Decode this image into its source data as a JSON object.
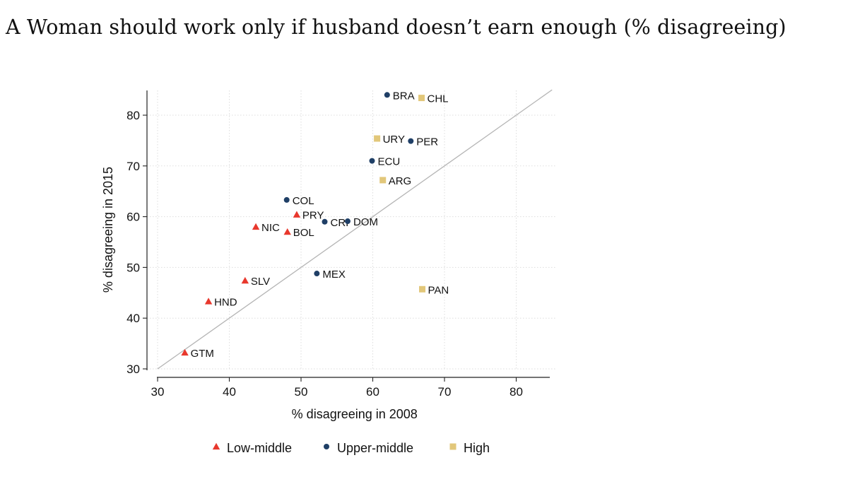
{
  "chart_data": {
    "type": "scatter",
    "title": "A Woman should work only if husband doesn’t earn enough (% disagreeing)",
    "xlabel": "% disagreeing in 2008",
    "ylabel": "% disagreeing in 2015",
    "xlim": [
      30,
      85
    ],
    "ylim": [
      30,
      85
    ],
    "xticks": [
      30,
      40,
      50,
      60,
      70,
      80
    ],
    "yticks": [
      30,
      40,
      50,
      60,
      70,
      80
    ],
    "grid": true,
    "reference_line": "45-degree line (y = x)",
    "legend_position": "bottom",
    "colors": {
      "Low-middle": "#e8382d",
      "Upper-middle": "#1f3f66",
      "High": "#e2c77a",
      "reference_line": "#b5b5b5",
      "grid": "#dddddd",
      "axis": "#222222"
    },
    "series": [
      {
        "name": "Low-middle",
        "marker": "triangle",
        "points": [
          {
            "label": "GTM",
            "x": 33.8,
            "y": 33.2
          },
          {
            "label": "HND",
            "x": 37.1,
            "y": 43.3
          },
          {
            "label": "SLV",
            "x": 42.2,
            "y": 47.4
          },
          {
            "label": "NIC",
            "x": 43.7,
            "y": 58.0
          },
          {
            "label": "BOL",
            "x": 48.1,
            "y": 57.0
          },
          {
            "label": "PRY",
            "x": 49.4,
            "y": 60.4
          }
        ]
      },
      {
        "name": "Upper-middle",
        "marker": "circle",
        "points": [
          {
            "label": "COL",
            "x": 48.0,
            "y": 63.3
          },
          {
            "label": "CRI",
            "x": 53.3,
            "y": 59.0
          },
          {
            "label": "DOM",
            "x": 56.5,
            "y": 59.1
          },
          {
            "label": "MEX",
            "x": 52.2,
            "y": 48.8
          },
          {
            "label": "ECU",
            "x": 59.9,
            "y": 71.0
          },
          {
            "label": "BRA",
            "x": 62.0,
            "y": 84.0
          },
          {
            "label": "PER",
            "x": 65.3,
            "y": 74.9
          }
        ]
      },
      {
        "name": "High",
        "marker": "square",
        "points": [
          {
            "label": "URY",
            "x": 60.6,
            "y": 75.4
          },
          {
            "label": "ARG",
            "x": 61.4,
            "y": 67.2
          },
          {
            "label": "CHL",
            "x": 66.8,
            "y": 83.4
          },
          {
            "label": "PAN",
            "x": 66.9,
            "y": 45.7
          }
        ]
      }
    ]
  }
}
